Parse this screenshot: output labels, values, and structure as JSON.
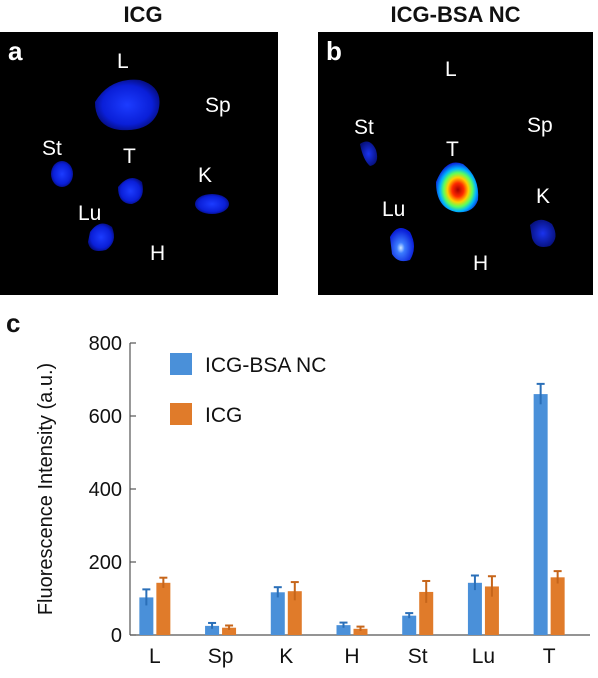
{
  "panels": [
    {
      "letter": "a",
      "title": "ICG",
      "labels": [
        "L",
        "Sp",
        "St",
        "T",
        "K",
        "Lu",
        "H"
      ]
    },
    {
      "letter": "b",
      "title": "ICG-BSA NC",
      "labels": [
        "L",
        "St",
        "Sp",
        "T",
        "Lu",
        "K",
        "H"
      ]
    }
  ],
  "chart_letter": "c",
  "chart_data": {
    "type": "bar",
    "categories": [
      "L",
      "Sp",
      "K",
      "H",
      "St",
      "Lu",
      "T"
    ],
    "series": [
      {
        "name": "ICG-BSA NC",
        "color": "#4a90d9",
        "values": [
          103,
          25,
          117,
          27,
          53,
          143,
          660
        ],
        "errors": [
          22,
          8,
          14,
          7,
          7,
          20,
          28
        ]
      },
      {
        "name": "ICG",
        "color": "#e07b2a",
        "values": [
          143,
          20,
          120,
          17,
          118,
          133,
          158
        ],
        "errors": [
          14,
          6,
          25,
          6,
          30,
          28,
          17
        ]
      }
    ],
    "ylabel": "Fluorescence Intensity (a.u.)",
    "ylim": [
      0,
      800
    ],
    "yticks": [
      0,
      200,
      400,
      600,
      800
    ],
    "legend_position": "top-left",
    "grid": false
  }
}
